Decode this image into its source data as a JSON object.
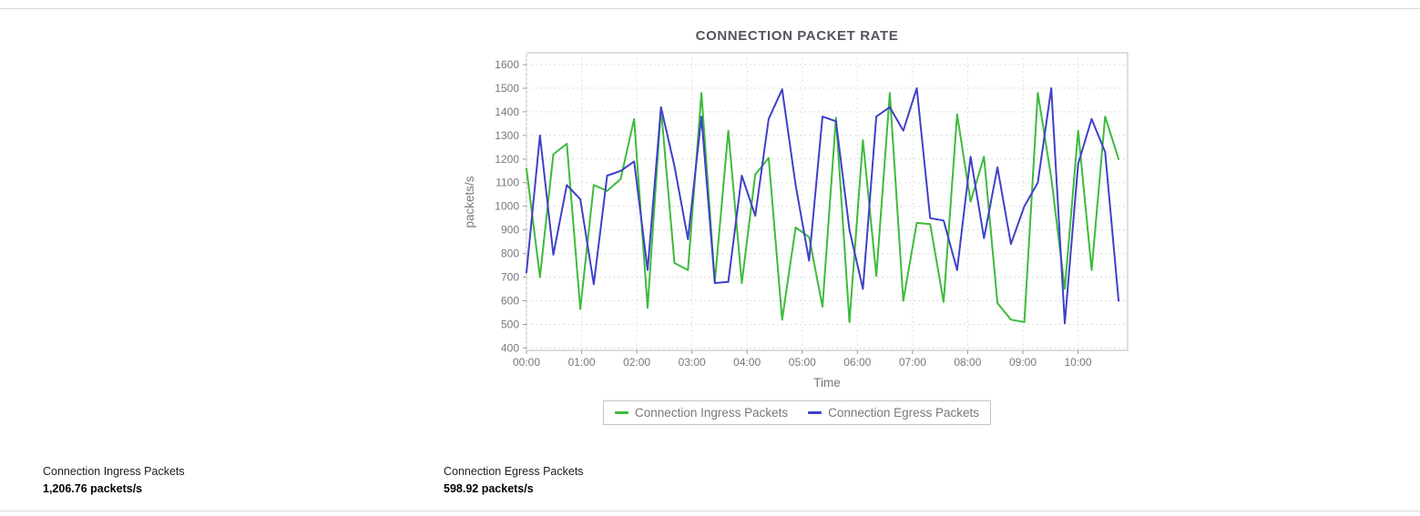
{
  "chart_data": {
    "type": "line",
    "title": "CONNECTION PACKET RATE",
    "xlabel": "Time",
    "ylabel": "packets/s",
    "ylim": [
      400,
      1600
    ],
    "grid": true,
    "legend_position": "bottom",
    "y_ticks": [
      400,
      500,
      600,
      700,
      800,
      900,
      1000,
      1100,
      1200,
      1300,
      1400,
      1500,
      1600
    ],
    "x_tick_labels": [
      "00:00",
      "01:00",
      "02:00",
      "03:00",
      "04:00",
      "05:00",
      "06:00",
      "07:00",
      "08:00",
      "09:00",
      "10:00"
    ],
    "x_tick_hours": [
      0,
      1,
      2,
      3,
      4,
      5,
      6,
      7,
      8,
      9,
      10
    ],
    "x_step_hours": 0.244,
    "x_max_hours": 10.9,
    "series": [
      {
        "name": "Connection Ingress Packets",
        "color": "#3dbb3d",
        "values": [
          1160,
          700,
          1220,
          1265,
          565,
          1090,
          1065,
          1115,
          1370,
          570,
          1415,
          760,
          730,
          1480,
          680,
          1320,
          675,
          1135,
          1205,
          520,
          910,
          870,
          575,
          1375,
          510,
          1280,
          705,
          1480,
          600,
          930,
          925,
          595,
          1390,
          1020,
          1210,
          590,
          520,
          510,
          1480,
          1120,
          650,
          1320,
          730,
          1380,
          1200
        ]
      },
      {
        "name": "Connection Egress Packets",
        "color": "#4040c8",
        "values": [
          720,
          1300,
          795,
          1090,
          1030,
          670,
          1130,
          1150,
          1190,
          730,
          1420,
          1170,
          860,
          1380,
          675,
          680,
          1130,
          960,
          1370,
          1495,
          1090,
          770,
          1380,
          1360,
          900,
          650,
          1380,
          1420,
          1320,
          1500,
          950,
          940,
          730,
          1210,
          865,
          1165,
          840,
          1000,
          1100,
          1500,
          505,
          1180,
          1370,
          1230,
          600
        ]
      }
    ]
  },
  "stats": [
    {
      "label": "Connection Ingress Packets",
      "value": "1,206.76 packets/s"
    },
    {
      "label": "Connection Egress Packets",
      "value": "598.92 packets/s"
    }
  ]
}
